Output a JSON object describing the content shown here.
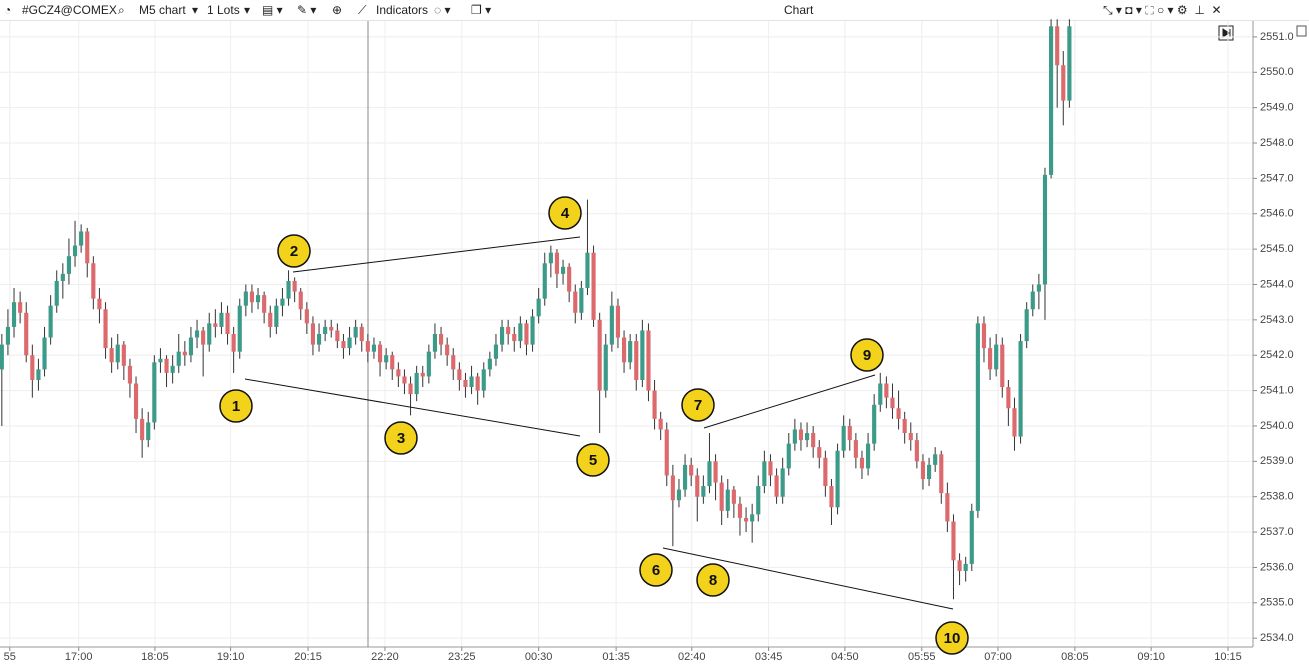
{
  "toolbar": {
    "symbol": "#GCZ4@COMEX",
    "timeframe": "M5 chart",
    "lots": "1 Lots",
    "indicators": "Indicators",
    "window_title": "Chart"
  },
  "chart_data": {
    "type": "candlestick",
    "up_color": "#3b9a88",
    "down_color": "#dc6a6d",
    "grid": true,
    "ylim": [
      2533.75,
      2551.45
    ],
    "yticks": [
      {
        "value": 2534,
        "label": "2534.0"
      },
      {
        "value": 2535,
        "label": "2535.0"
      },
      {
        "value": 2536,
        "label": "2536.0"
      },
      {
        "value": 2537,
        "label": "2537.0"
      },
      {
        "value": 2538,
        "label": "2538.0"
      },
      {
        "value": 2539,
        "label": "2539.0"
      },
      {
        "value": 2540,
        "label": "2540.0"
      },
      {
        "value": 2541,
        "label": "2541.0"
      },
      {
        "value": 2542,
        "label": "2542.0"
      },
      {
        "value": 2543,
        "label": "2543.0"
      },
      {
        "value": 2544,
        "label": "2544.0"
      },
      {
        "value": 2545,
        "label": "2545.0"
      },
      {
        "value": 2546,
        "label": "2546.0"
      },
      {
        "value": 2547,
        "label": "2547.0"
      },
      {
        "value": 2548,
        "label": "2548.0"
      },
      {
        "value": 2549,
        "label": "2549.0"
      },
      {
        "value": 2550,
        "label": "2550.0"
      },
      {
        "value": 2551,
        "label": "2551.0"
      }
    ],
    "xlim": [
      -0.3,
      205.1
    ],
    "xticks": [
      {
        "value": 1.3,
        "label": "55"
      },
      {
        "value": 12.6,
        "label": "17:00"
      },
      {
        "value": 25.1,
        "label": "18:05"
      },
      {
        "value": 37.5,
        "label": "19:10"
      },
      {
        "value": 50.2,
        "label": "20:15"
      },
      {
        "value": 62.8,
        "label": "22:20"
      },
      {
        "value": 75.4,
        "label": "23:25"
      },
      {
        "value": 88,
        "label": "00:30"
      },
      {
        "value": 100.7,
        "label": "01:35"
      },
      {
        "value": 113.1,
        "label": "02:40"
      },
      {
        "value": 125.7,
        "label": "03:45"
      },
      {
        "value": 138.2,
        "label": "04:50"
      },
      {
        "value": 150.8,
        "label": "05:55"
      },
      {
        "value": 163.3,
        "label": "07:00"
      },
      {
        "value": 175.9,
        "label": "08:05"
      },
      {
        "value": 188.4,
        "label": "09:10"
      },
      {
        "value": 201,
        "label": "10:15"
      }
    ],
    "annotations": [
      "1",
      "2",
      "3",
      "4",
      "5",
      "6",
      "7",
      "8",
      "9",
      "10"
    ],
    "ohlc": [
      [
        2541.6,
        2542.6,
        2540.0,
        2542.3
      ],
      [
        2542.3,
        2543.3,
        2542.0,
        2542.8
      ],
      [
        2542.8,
        2543.9,
        2542.5,
        2543.5
      ],
      [
        2543.5,
        2543.8,
        2542.9,
        2543.2
      ],
      [
        2543.2,
        2543.5,
        2541.8,
        2542.0
      ],
      [
        2542.0,
        2542.3,
        2540.8,
        2541.3
      ],
      [
        2541.3,
        2541.9,
        2541.0,
        2541.6
      ],
      [
        2541.6,
        2542.8,
        2541.4,
        2542.5
      ],
      [
        2542.5,
        2543.7,
        2542.3,
        2543.4
      ],
      [
        2543.4,
        2544.4,
        2543.2,
        2544.1
      ],
      [
        2544.1,
        2544.6,
        2543.6,
        2544.3
      ],
      [
        2544.3,
        2545.3,
        2544.0,
        2544.8
      ],
      [
        2544.8,
        2545.8,
        2544.5,
        2545.1
      ],
      [
        2545.1,
        2545.7,
        2544.9,
        2545.5
      ],
      [
        2545.5,
        2545.6,
        2544.2,
        2544.6
      ],
      [
        2544.6,
        2544.8,
        2543.3,
        2543.6
      ],
      [
        2543.6,
        2543.9,
        2542.9,
        2543.3
      ],
      [
        2543.3,
        2543.5,
        2541.9,
        2542.2
      ],
      [
        2542.2,
        2542.5,
        2541.5,
        2541.8
      ],
      [
        2541.8,
        2542.6,
        2541.6,
        2542.3
      ],
      [
        2542.3,
        2542.4,
        2541.3,
        2541.7
      ],
      [
        2541.7,
        2541.9,
        2540.8,
        2541.2
      ],
      [
        2541.2,
        2541.4,
        2539.8,
        2540.2
      ],
      [
        2540.2,
        2540.5,
        2539.1,
        2539.6
      ],
      [
        2539.6,
        2540.4,
        2539.4,
        2540.1
      ],
      [
        2540.1,
        2542.0,
        2539.9,
        2541.8
      ],
      [
        2541.8,
        2542.2,
        2541.5,
        2541.9
      ],
      [
        2541.9,
        2542.0,
        2541.1,
        2541.5
      ],
      [
        2541.5,
        2542.0,
        2541.2,
        2541.7
      ],
      [
        2541.7,
        2542.6,
        2541.5,
        2542.1
      ],
      [
        2542.1,
        2542.4,
        2541.7,
        2542.0
      ],
      [
        2542.0,
        2542.8,
        2541.8,
        2542.5
      ],
      [
        2542.5,
        2543.0,
        2542.2,
        2542.7
      ],
      [
        2542.7,
        2542.8,
        2541.4,
        2542.3
      ],
      [
        2542.3,
        2543.2,
        2542.1,
        2542.9
      ],
      [
        2542.9,
        2543.3,
        2542.5,
        2542.8
      ],
      [
        2542.8,
        2543.5,
        2542.6,
        2543.2
      ],
      [
        2543.2,
        2543.4,
        2542.3,
        2542.6
      ],
      [
        2542.6,
        2542.8,
        2541.5,
        2542.1
      ],
      [
        2542.1,
        2543.6,
        2541.9,
        2543.4
      ],
      [
        2543.4,
        2544.0,
        2543.1,
        2543.8
      ],
      [
        2543.8,
        2544.0,
        2543.2,
        2543.5
      ],
      [
        2543.5,
        2543.9,
        2543.3,
        2543.7
      ],
      [
        2543.7,
        2543.8,
        2542.9,
        2543.2
      ],
      [
        2543.2,
        2543.4,
        2542.5,
        2542.8
      ],
      [
        2542.8,
        2543.6,
        2542.6,
        2543.4
      ],
      [
        2543.4,
        2543.9,
        2543.1,
        2543.6
      ],
      [
        2543.6,
        2544.4,
        2543.4,
        2544.1
      ],
      [
        2544.1,
        2544.2,
        2543.5,
        2543.8
      ],
      [
        2543.8,
        2543.9,
        2543.0,
        2543.3
      ],
      [
        2543.3,
        2543.5,
        2542.6,
        2542.9
      ],
      [
        2542.9,
        2543.1,
        2542.0,
        2542.3
      ],
      [
        2542.3,
        2542.9,
        2542.1,
        2542.6
      ],
      [
        2542.6,
        2543.0,
        2542.4,
        2542.8
      ],
      [
        2542.8,
        2543.0,
        2542.5,
        2542.7
      ],
      [
        2542.7,
        2542.9,
        2542.2,
        2542.4
      ],
      [
        2542.4,
        2542.6,
        2541.9,
        2542.2
      ],
      [
        2542.2,
        2542.8,
        2542.0,
        2542.5
      ],
      [
        2542.5,
        2543.0,
        2542.3,
        2542.8
      ],
      [
        2542.8,
        2542.9,
        2542.1,
        2542.4
      ],
      [
        2542.4,
        2542.6,
        2541.8,
        2542.1
      ],
      [
        2542.1,
        2542.5,
        2541.9,
        2542.3
      ],
      [
        2542.3,
        2542.4,
        2541.4,
        2541.8
      ],
      [
        2541.8,
        2542.2,
        2541.6,
        2542.0
      ],
      [
        2542.0,
        2542.1,
        2541.3,
        2541.6
      ],
      [
        2541.6,
        2541.8,
        2541.1,
        2541.4
      ],
      [
        2541.4,
        2541.6,
        2540.9,
        2541.2
      ],
      [
        2541.2,
        2541.4,
        2540.3,
        2540.9
      ],
      [
        2540.9,
        2541.7,
        2540.7,
        2541.5
      ],
      [
        2541.5,
        2541.7,
        2541.1,
        2541.4
      ],
      [
        2541.4,
        2542.3,
        2541.2,
        2542.1
      ],
      [
        2542.1,
        2542.9,
        2541.9,
        2542.6
      ],
      [
        2542.6,
        2542.8,
        2542.0,
        2542.3
      ],
      [
        2542.3,
        2542.5,
        2541.7,
        2542.0
      ],
      [
        2542.0,
        2542.2,
        2541.3,
        2541.6
      ],
      [
        2541.6,
        2541.8,
        2541.0,
        2541.3
      ],
      [
        2541.3,
        2541.5,
        2540.8,
        2541.1
      ],
      [
        2541.1,
        2541.7,
        2540.9,
        2541.4
      ],
      [
        2541.4,
        2541.5,
        2540.6,
        2541.0
      ],
      [
        2541.0,
        2541.8,
        2540.8,
        2541.6
      ],
      [
        2541.6,
        2542.1,
        2541.4,
        2541.9
      ],
      [
        2541.9,
        2542.6,
        2541.7,
        2542.3
      ],
      [
        2542.3,
        2543.0,
        2542.1,
        2542.8
      ],
      [
        2542.8,
        2543.0,
        2542.3,
        2542.6
      ],
      [
        2542.6,
        2542.8,
        2542.1,
        2542.4
      ],
      [
        2542.4,
        2543.1,
        2542.2,
        2542.9
      ],
      [
        2542.9,
        2543.0,
        2542.0,
        2542.3
      ],
      [
        2542.3,
        2543.3,
        2542.1,
        2543.1
      ],
      [
        2543.1,
        2543.9,
        2542.9,
        2543.6
      ],
      [
        2543.6,
        2544.9,
        2543.4,
        2544.6
      ],
      [
        2544.6,
        2545.1,
        2544.2,
        2544.9
      ],
      [
        2544.9,
        2545.0,
        2543.9,
        2544.3
      ],
      [
        2544.3,
        2544.7,
        2544.0,
        2544.5
      ],
      [
        2544.5,
        2544.6,
        2543.5,
        2543.8
      ],
      [
        2543.8,
        2544.0,
        2542.9,
        2543.2
      ],
      [
        2543.2,
        2544.1,
        2543.0,
        2543.9
      ],
      [
        2543.9,
        2546.4,
        2543.7,
        2544.9
      ],
      [
        2544.9,
        2545.1,
        2542.8,
        2543.0
      ],
      [
        2543.0,
        2543.2,
        2539.8,
        2541.0
      ],
      [
        2541.0,
        2542.6,
        2540.8,
        2542.3
      ],
      [
        2542.3,
        2543.8,
        2542.1,
        2543.4
      ],
      [
        2543.4,
        2543.6,
        2542.2,
        2542.5
      ],
      [
        2542.5,
        2542.7,
        2541.5,
        2541.8
      ],
      [
        2541.8,
        2542.6,
        2541.6,
        2542.4
      ],
      [
        2542.4,
        2542.6,
        2541.0,
        2541.3
      ],
      [
        2541.3,
        2543.0,
        2541.1,
        2542.7
      ],
      [
        2542.7,
        2542.9,
        2540.7,
        2541.0
      ],
      [
        2541.0,
        2541.3,
        2539.9,
        2540.2
      ],
      [
        2540.2,
        2540.4,
        2539.6,
        2539.9
      ],
      [
        2539.9,
        2540.1,
        2538.3,
        2538.6
      ],
      [
        2538.6,
        2538.9,
        2536.6,
        2537.9
      ],
      [
        2537.9,
        2538.5,
        2537.7,
        2538.2
      ],
      [
        2538.2,
        2539.2,
        2538.0,
        2538.9
      ],
      [
        2538.9,
        2539.1,
        2538.3,
        2538.6
      ],
      [
        2538.6,
        2538.8,
        2537.3,
        2538.0
      ],
      [
        2538.0,
        2538.6,
        2537.8,
        2538.3
      ],
      [
        2538.3,
        2539.8,
        2538.1,
        2539.0
      ],
      [
        2539.0,
        2539.2,
        2537.9,
        2538.4
      ],
      [
        2538.4,
        2538.6,
        2537.2,
        2537.6
      ],
      [
        2537.6,
        2538.5,
        2537.4,
        2538.2
      ],
      [
        2538.2,
        2538.3,
        2537.4,
        2537.8
      ],
      [
        2537.8,
        2538.0,
        2536.9,
        2537.4
      ],
      [
        2537.4,
        2537.7,
        2537.0,
        2537.3
      ],
      [
        2537.3,
        2537.8,
        2536.7,
        2537.5
      ],
      [
        2537.5,
        2538.6,
        2537.3,
        2538.3
      ],
      [
        2538.3,
        2539.3,
        2538.1,
        2539.0
      ],
      [
        2539.0,
        2539.2,
        2538.3,
        2538.6
      ],
      [
        2538.6,
        2538.8,
        2537.8,
        2538.0
      ],
      [
        2538.0,
        2539.1,
        2537.8,
        2538.8
      ],
      [
        2538.8,
        2539.8,
        2538.6,
        2539.5
      ],
      [
        2539.5,
        2540.2,
        2539.3,
        2539.9
      ],
      [
        2539.9,
        2540.1,
        2539.3,
        2539.6
      ],
      [
        2539.6,
        2540.1,
        2539.4,
        2539.8
      ],
      [
        2539.8,
        2540.0,
        2539.1,
        2539.4
      ],
      [
        2539.4,
        2539.6,
        2538.8,
        2539.1
      ],
      [
        2539.1,
        2539.3,
        2538.0,
        2538.3
      ],
      [
        2538.3,
        2538.5,
        2537.2,
        2537.7
      ],
      [
        2537.7,
        2539.5,
        2537.5,
        2539.3
      ],
      [
        2539.3,
        2540.3,
        2539.1,
        2540.0
      ],
      [
        2540.0,
        2540.2,
        2539.3,
        2539.6
      ],
      [
        2539.6,
        2539.8,
        2538.8,
        2539.1
      ],
      [
        2539.1,
        2539.3,
        2538.5,
        2538.8
      ],
      [
        2538.8,
        2539.8,
        2538.6,
        2539.5
      ],
      [
        2539.5,
        2540.9,
        2539.3,
        2540.6
      ],
      [
        2540.6,
        2541.5,
        2540.4,
        2541.2
      ],
      [
        2541.2,
        2541.4,
        2540.5,
        2540.8
      ],
      [
        2540.8,
        2541.2,
        2540.2,
        2540.5
      ],
      [
        2540.5,
        2541.0,
        2539.9,
        2540.2
      ],
      [
        2540.2,
        2540.4,
        2539.5,
        2539.8
      ],
      [
        2539.8,
        2540.1,
        2539.3,
        2539.6
      ],
      [
        2539.6,
        2539.8,
        2538.8,
        2539.0
      ],
      [
        2539.0,
        2539.2,
        2538.2,
        2538.5
      ],
      [
        2538.5,
        2539.1,
        2538.3,
        2538.9
      ],
      [
        2538.9,
        2539.4,
        2538.7,
        2539.2
      ],
      [
        2539.2,
        2539.3,
        2537.8,
        2538.1
      ],
      [
        2538.1,
        2538.4,
        2537.0,
        2537.3
      ],
      [
        2537.3,
        2537.5,
        2535.1,
        2536.2
      ],
      [
        2536.2,
        2536.4,
        2535.5,
        2535.9
      ],
      [
        2535.9,
        2536.3,
        2535.6,
        2536.1
      ],
      [
        2536.1,
        2537.8,
        2535.9,
        2537.6
      ],
      [
        2537.6,
        2543.1,
        2537.4,
        2542.9
      ],
      [
        2542.9,
        2543.1,
        2541.8,
        2542.2
      ],
      [
        2542.2,
        2542.5,
        2541.3,
        2541.6
      ],
      [
        2541.6,
        2542.6,
        2541.4,
        2542.3
      ],
      [
        2542.3,
        2542.5,
        2540.8,
        2541.1
      ],
      [
        2541.1,
        2541.3,
        2540.0,
        2540.5
      ],
      [
        2540.5,
        2540.8,
        2539.3,
        2539.7
      ],
      [
        2539.7,
        2542.6,
        2539.5,
        2542.4
      ],
      [
        2542.4,
        2543.5,
        2542.2,
        2543.3
      ],
      [
        2543.3,
        2544.0,
        2543.1,
        2543.8
      ],
      [
        2543.8,
        2544.3,
        2543.3,
        2544.0
      ],
      [
        2544.0,
        2547.3,
        2543.0,
        2547.1
      ],
      [
        2547.1,
        2551.5,
        2547.0,
        2551.3
      ],
      [
        2551.3,
        2551.5,
        2549.0,
        2550.2
      ],
      [
        2550.2,
        2550.6,
        2548.5,
        2549.2
      ],
      [
        2549.2,
        2551.5,
        2549.0,
        2551.3
      ]
    ]
  }
}
